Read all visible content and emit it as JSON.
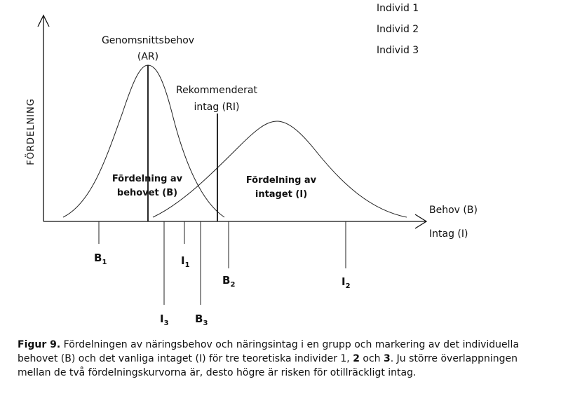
{
  "diagram": {
    "y_axis_label": "FÖRDELNING",
    "x_axis_labels": [
      "Behov (B)",
      "Intag (I)"
    ],
    "legend": [
      "Individ 1",
      "Individ 2",
      "Individ 3"
    ],
    "ar_label": [
      "Genomsnittsbehov",
      "(AR)"
    ],
    "ri_label": [
      "Rekommenderat",
      "intag (RI)"
    ],
    "need_curve_label": [
      "Fördelning av",
      "behovet (B)"
    ],
    "intake_curve_label": [
      "Fördelning av",
      "intaget (I)"
    ],
    "markers": [
      {
        "letter": "B",
        "sub": "1"
      },
      {
        "letter": "I",
        "sub": "1"
      },
      {
        "letter": "B",
        "sub": "2"
      },
      {
        "letter": "I",
        "sub": "2"
      },
      {
        "letter": "I",
        "sub": "3"
      },
      {
        "letter": "B",
        "sub": "3"
      }
    ]
  },
  "caption": {
    "label": "Figur 9.",
    "text_1": " Fördelningen av näringsbehov och näringsintag i en grupp och markering av det individuella behovet (B) och det vanliga intaget (I) för tre teoretiska individer 1, ",
    "bold_2": "2",
    "text_2": " och ",
    "bold_3": "3",
    "text_3": ". Ju större överlappningen mellan de två fördelningskurvorna är, desto högre är risken för otillräckligt intag."
  }
}
